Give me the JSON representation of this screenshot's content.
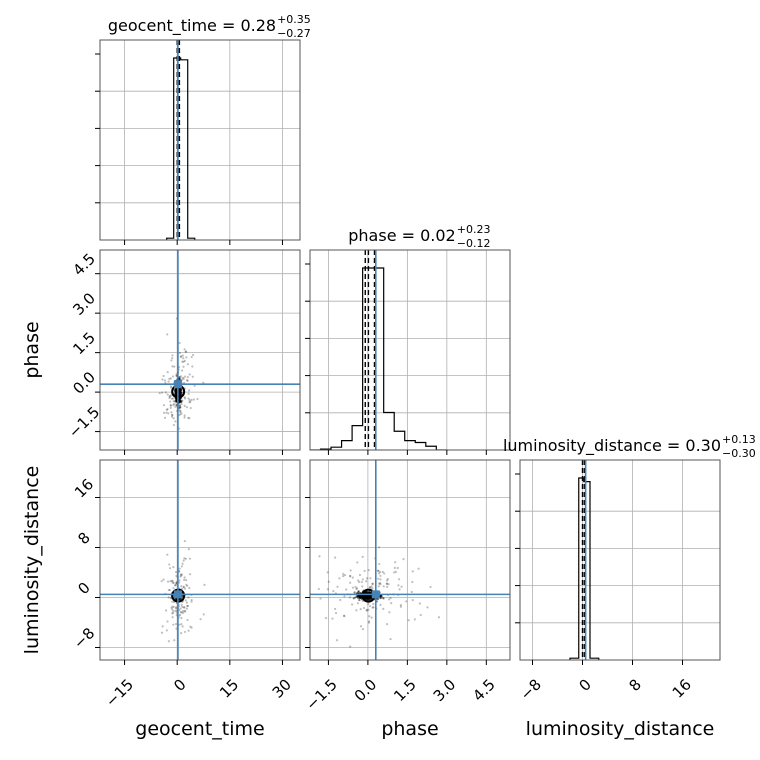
{
  "chart_data": {
    "type": "corner",
    "truth_color": "#4682b4",
    "parameters": [
      {
        "name": "geocent_time",
        "xlabel": "geocent_time",
        "title": "geocent_time = 0.28",
        "err_plus": "+0.35",
        "err_minus": "−0.27",
        "range": [
          -22,
          35
        ],
        "ticks": [
          -15,
          0,
          15,
          30
        ],
        "tick_labels": [
          "−15",
          "0",
          "15",
          "30"
        ],
        "truth": 0.2,
        "quantiles": [
          0.01,
          0.28,
          0.63
        ],
        "hist": {
          "edges": [
            -3,
            -1,
            1,
            3,
            5
          ],
          "counts": [
            0.01,
            1.0,
            0.99,
            0.01
          ]
        }
      },
      {
        "name": "phase",
        "xlabel": "phase",
        "title": "phase = 0.02",
        "err_plus": "+0.23",
        "err_minus": "−0.12",
        "range": [
          -2.2,
          5.4
        ],
        "ticks": [
          -1.5,
          0.0,
          1.5,
          3.0,
          4.5
        ],
        "tick_labels": [
          "−1.5",
          "0.0",
          "1.5",
          "3.0",
          "4.5"
        ],
        "truth": 0.3,
        "quantiles": [
          -0.1,
          0.02,
          0.25
        ],
        "hist": {
          "edges": [
            -2.2,
            -1.8,
            -1.4,
            -1.0,
            -0.6,
            -0.2,
            0.2,
            0.6,
            1.0,
            1.4,
            1.8,
            2.2,
            2.6,
            3.0
          ],
          "counts": [
            0.0,
            0.005,
            0.015,
            0.05,
            0.13,
            0.97,
            0.97,
            0.2,
            0.1,
            0.05,
            0.04,
            0.02,
            0.0
          ]
        }
      },
      {
        "name": "luminosity_distance",
        "xlabel": "luminosity_distance",
        "title": "luminosity_distance = 0.30",
        "err_plus": "+0.13",
        "err_minus": "−0.30",
        "range": [
          -10,
          22
        ],
        "ticks": [
          -8,
          0,
          8,
          16
        ],
        "tick_labels": [
          "−8",
          "0",
          "8",
          "16"
        ],
        "truth": 0.5,
        "quantiles": [
          0.0,
          0.3,
          0.43
        ],
        "hist": {
          "edges": [
            -2,
            -0.6,
            0.2,
            1.2,
            2.6
          ],
          "counts": [
            0.01,
            1.0,
            0.98,
            0.01
          ]
        }
      }
    ],
    "grid": true,
    "legend": "none"
  }
}
